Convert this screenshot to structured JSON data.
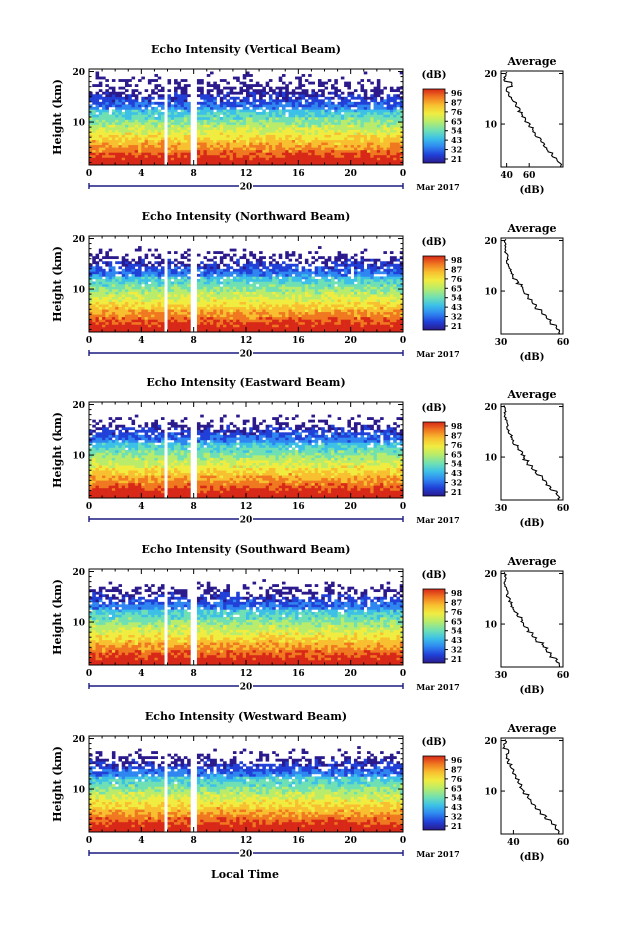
{
  "xlabel": "Local Time",
  "date_label": "Mar 2017",
  "day_label": "20",
  "ylabel": "Height (km)",
  "colorbar_unit": "(dB)",
  "avg_title": "Average",
  "avg_xlabel": "(dB)",
  "colors": {
    "colormap": [
      "#2a1a8c",
      "#2040d8",
      "#2f86f0",
      "#3cc0e8",
      "#6fe0b4",
      "#b8ec6a",
      "#f0ec40",
      "#f8c030",
      "#f07820",
      "#d82818"
    ],
    "axis": "#000000",
    "time_axis": "#1a1a80"
  },
  "chart_data": [
    {
      "type": "heatmap",
      "title": "Echo Intensity (Vertical Beam)",
      "xlabel": "Local Time",
      "ylabel": "Height (km)",
      "x_ticks": [
        "0",
        "4",
        "8",
        "12",
        "16",
        "20",
        "0"
      ],
      "xlim": [
        0,
        24
      ],
      "y_ticks": [
        "20",
        "10"
      ],
      "ylim": [
        1.5,
        20.5
      ],
      "colorbar_ticks": [
        "96",
        "87",
        "76",
        "65",
        "54",
        "43",
        "32",
        "21"
      ],
      "clim": [
        21,
        96
      ],
      "data_gaps_hours": [
        [
          5.7,
          6.0
        ],
        [
          7.8,
          8.2
        ],
        [
          17.4,
          17.6
        ]
      ],
      "average_profile": {
        "xlim": [
          35,
          90
        ],
        "x_ticks": [
          "40",
          "60"
        ],
        "height_km": [
          2,
          3,
          4,
          5,
          6,
          7,
          8,
          9,
          10,
          11,
          12,
          13,
          14,
          15,
          16,
          17,
          18,
          19,
          20
        ],
        "db": [
          88,
          85,
          80,
          76,
          73,
          70,
          66,
          63,
          60,
          57,
          54,
          51,
          48,
          45,
          42,
          40,
          45,
          38,
          40
        ]
      }
    },
    {
      "type": "heatmap",
      "title": "Echo Intensity (Northward Beam)",
      "xlabel": "Local Time",
      "ylabel": "Height (km)",
      "x_ticks": [
        "0",
        "4",
        "8",
        "12",
        "16",
        "20",
        "0"
      ],
      "xlim": [
        0,
        24
      ],
      "y_ticks": [
        "20",
        "10"
      ],
      "ylim": [
        1.5,
        20.5
      ],
      "colorbar_ticks": [
        "98",
        "87",
        "76",
        "65",
        "54",
        "43",
        "32",
        "21"
      ],
      "clim": [
        21,
        98
      ],
      "data_gaps_hours": [
        [
          5.7,
          6.0
        ],
        [
          7.8,
          8.2
        ],
        [
          17.4,
          17.6
        ]
      ],
      "average_profile": {
        "xlim": [
          30,
          60
        ],
        "x_ticks": [
          "30",
          "60"
        ],
        "height_km": [
          2,
          3,
          4,
          5,
          6,
          7,
          8,
          9,
          10,
          11,
          12,
          13,
          14,
          15,
          16,
          17,
          18,
          19,
          20
        ],
        "db": [
          58,
          57,
          54,
          52,
          50,
          47,
          45,
          43,
          41,
          40,
          38,
          36,
          35,
          34,
          33,
          33,
          32,
          32,
          32
        ]
      }
    },
    {
      "type": "heatmap",
      "title": "Echo Intensity (Eastward Beam)",
      "xlabel": "Local Time",
      "ylabel": "Height (km)",
      "x_ticks": [
        "0",
        "4",
        "8",
        "12",
        "16",
        "20",
        "0"
      ],
      "xlim": [
        0,
        24
      ],
      "y_ticks": [
        "20",
        "10"
      ],
      "ylim": [
        1.5,
        20.5
      ],
      "colorbar_ticks": [
        "98",
        "87",
        "76",
        "65",
        "54",
        "43",
        "32",
        "21"
      ],
      "clim": [
        21,
        98
      ],
      "data_gaps_hours": [
        [
          5.7,
          6.0
        ],
        [
          7.8,
          8.2
        ],
        [
          17.4,
          17.6
        ]
      ],
      "average_profile": {
        "xlim": [
          30,
          60
        ],
        "x_ticks": [
          "30",
          "60"
        ],
        "height_km": [
          2,
          3,
          4,
          5,
          6,
          7,
          8,
          9,
          10,
          11,
          12,
          13,
          14,
          15,
          16,
          17,
          18,
          19,
          20
        ],
        "db": [
          58,
          57,
          54,
          52,
          50,
          47,
          45,
          43,
          41,
          40,
          38,
          36,
          35,
          34,
          33,
          33,
          32,
          32,
          32
        ]
      }
    },
    {
      "type": "heatmap",
      "title": "Echo Intensity (Southward Beam)",
      "xlabel": "Local Time",
      "ylabel": "Height (km)",
      "x_ticks": [
        "0",
        "4",
        "8",
        "12",
        "16",
        "20",
        "0"
      ],
      "xlim": [
        0,
        24
      ],
      "y_ticks": [
        "20",
        "10"
      ],
      "ylim": [
        1.5,
        20.5
      ],
      "colorbar_ticks": [
        "98",
        "87",
        "76",
        "65",
        "54",
        "43",
        "32",
        "21"
      ],
      "clim": [
        21,
        98
      ],
      "data_gaps_hours": [
        [
          5.7,
          6.0
        ],
        [
          7.8,
          8.2
        ],
        [
          17.4,
          17.6
        ]
      ],
      "average_profile": {
        "xlim": [
          30,
          60
        ],
        "x_ticks": [
          "30",
          "60"
        ],
        "height_km": [
          2,
          3,
          4,
          5,
          6,
          7,
          8,
          9,
          10,
          11,
          12,
          13,
          14,
          15,
          16,
          17,
          18,
          19,
          20
        ],
        "db": [
          58,
          57,
          54,
          52,
          50,
          47,
          45,
          43,
          41,
          40,
          38,
          36,
          35,
          34,
          33,
          33,
          32,
          32,
          32
        ]
      }
    },
    {
      "type": "heatmap",
      "title": "Echo Intensity (Westward Beam)",
      "xlabel": "Local Time",
      "ylabel": "Height (km)",
      "x_ticks": [
        "0",
        "4",
        "8",
        "12",
        "16",
        "20",
        "0"
      ],
      "xlim": [
        0,
        24
      ],
      "y_ticks": [
        "20",
        "10"
      ],
      "ylim": [
        1.5,
        20.5
      ],
      "colorbar_ticks": [
        "96",
        "87",
        "76",
        "65",
        "54",
        "43",
        "32",
        "21"
      ],
      "clim": [
        21,
        96
      ],
      "data_gaps_hours": [
        [
          5.7,
          6.0
        ],
        [
          7.8,
          8.2
        ],
        [
          17.4,
          17.6
        ]
      ],
      "average_profile": {
        "xlim": [
          35,
          60
        ],
        "x_ticks": [
          "40",
          "60"
        ],
        "height_km": [
          2,
          3,
          4,
          5,
          6,
          7,
          8,
          9,
          10,
          11,
          12,
          13,
          14,
          15,
          16,
          17,
          18,
          19,
          20
        ],
        "db": [
          58,
          57,
          55,
          53,
          51,
          49,
          47,
          46,
          44,
          43,
          42,
          41,
          40,
          39,
          38,
          37,
          38,
          36,
          37
        ]
      }
    }
  ]
}
